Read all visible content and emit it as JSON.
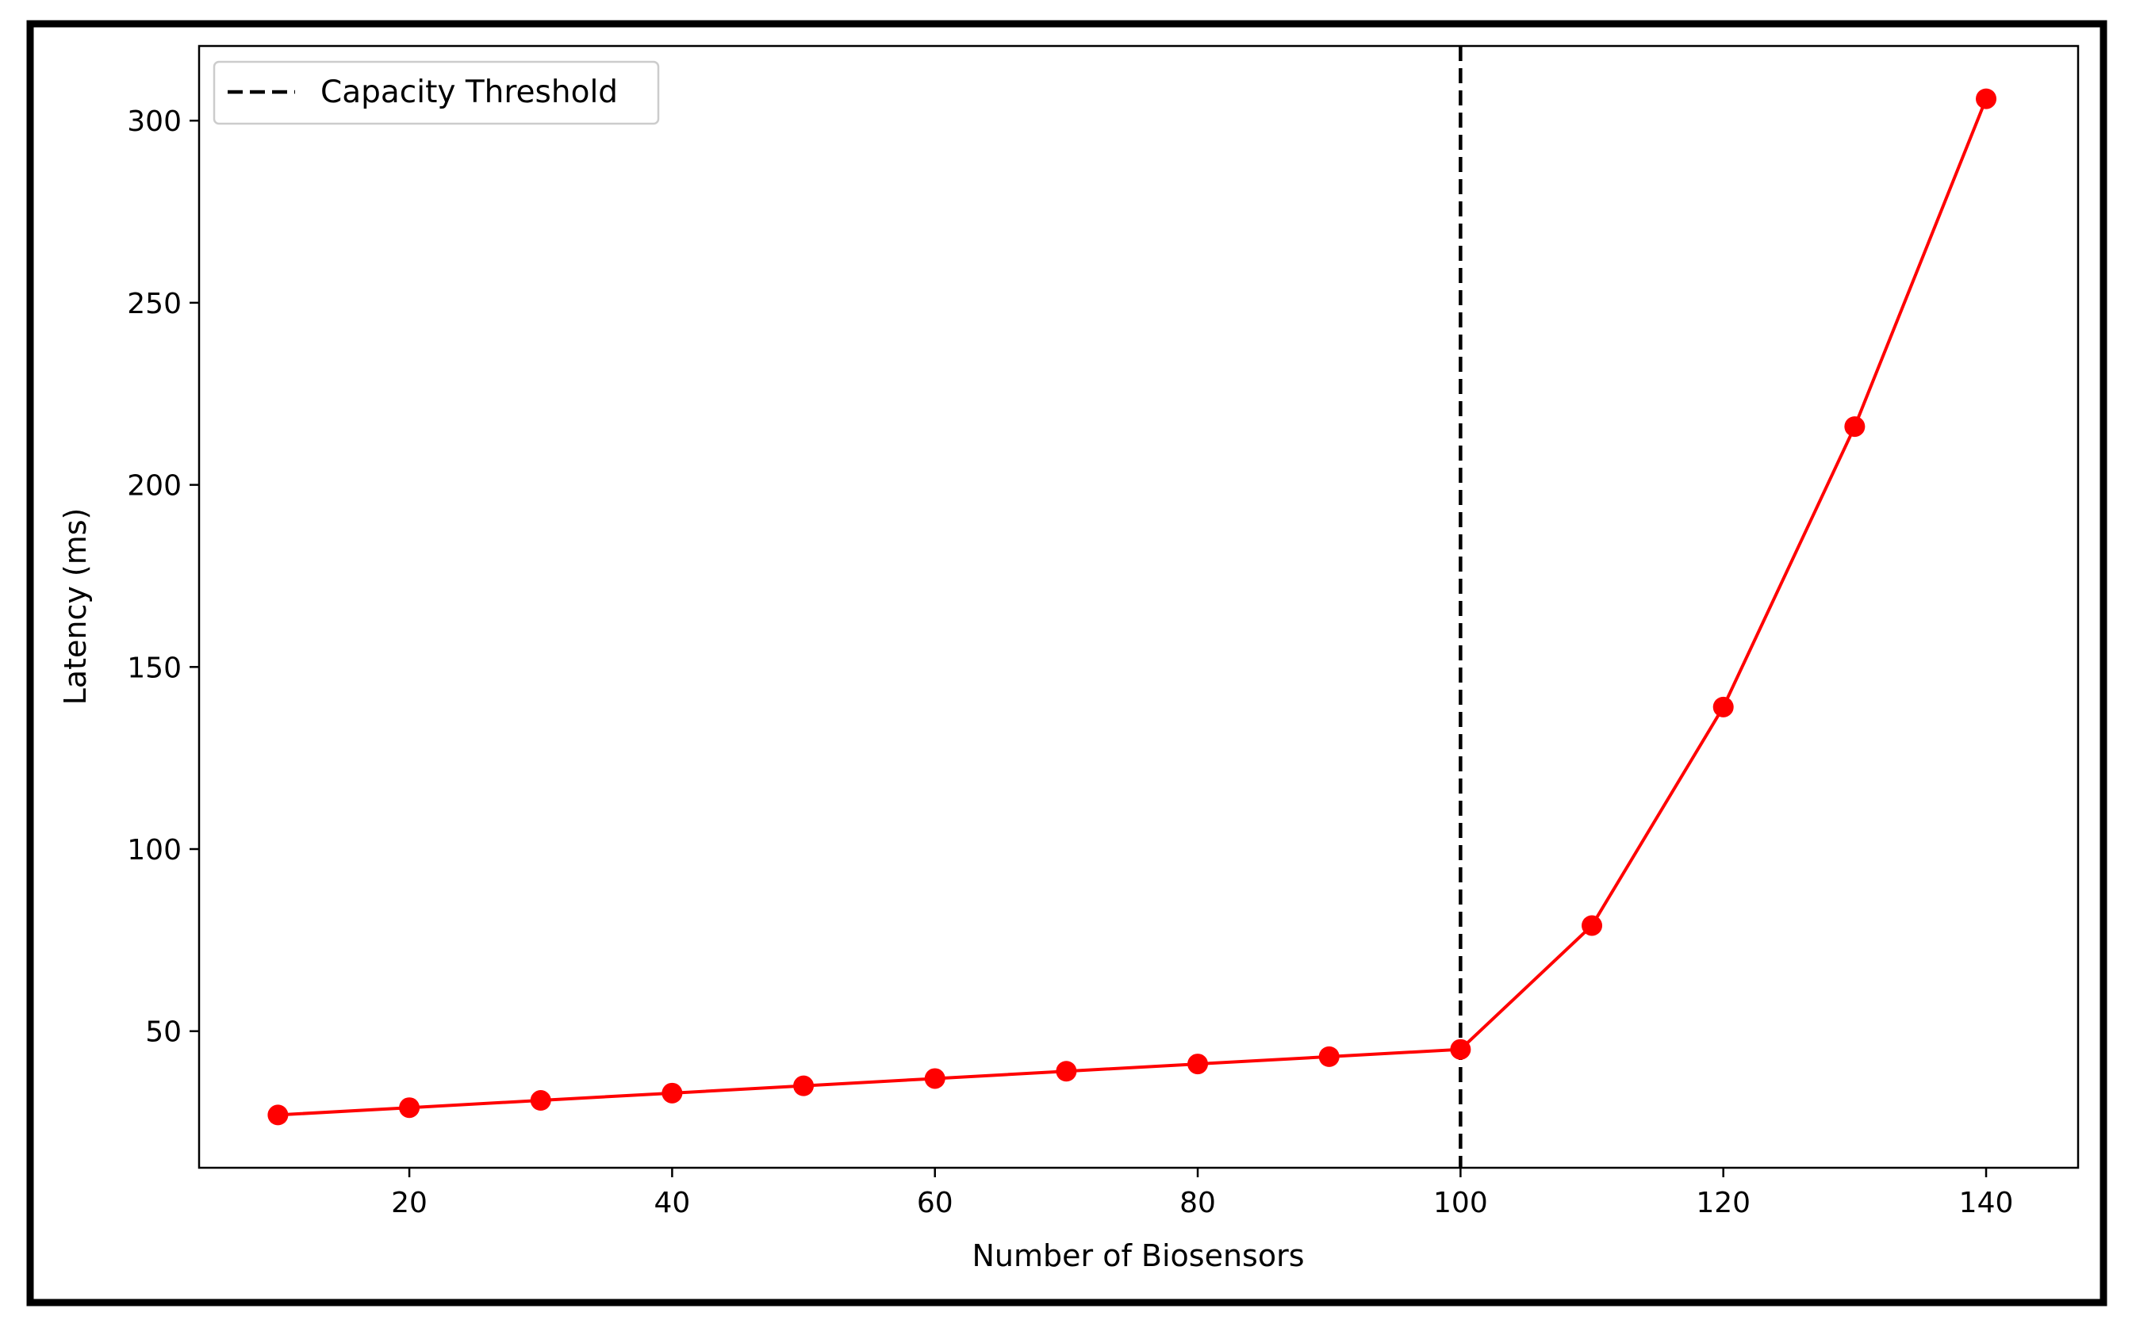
{
  "chart_data": {
    "type": "line",
    "title": "",
    "xlabel": "Number of Biosensors",
    "ylabel": "Latency (ms)",
    "xlim": [
      4,
      147
    ],
    "ylim": [
      12.5,
      320.5
    ],
    "x_ticks": [
      20,
      40,
      60,
      80,
      100,
      120,
      140
    ],
    "y_ticks": [
      50,
      100,
      150,
      200,
      250,
      300
    ],
    "grid": false,
    "legend_position": "top-left",
    "series": [
      {
        "color": "#ff0000",
        "marker": "circle",
        "x": [
          10,
          20,
          30,
          40,
          50,
          60,
          70,
          80,
          90,
          100,
          110,
          120,
          130,
          140
        ],
        "y": [
          27,
          29,
          31,
          33,
          35,
          37,
          39,
          41,
          43,
          45,
          79,
          139,
          216,
          306
        ]
      }
    ],
    "threshold": {
      "name": "Capacity Threshold",
      "x": 100,
      "color": "#000000",
      "style": "dashed"
    }
  }
}
